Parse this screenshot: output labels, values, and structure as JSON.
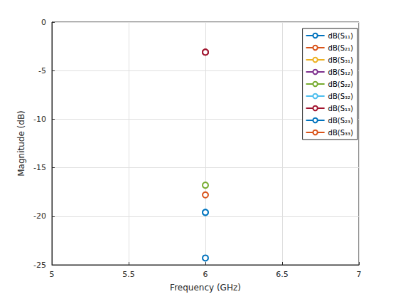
{
  "chart_data": {
    "type": "line",
    "x_label": "Frequency (GHz)",
    "y_label": "Magnitude (dB)",
    "x": [
      6
    ],
    "series": [
      {
        "name": "dB(S₁₁)",
        "color": "#0072BD",
        "values": [
          -24.3
        ]
      },
      {
        "name": "dB(S₂₁)",
        "color": "#D95319",
        "values": [
          -3.1
        ]
      },
      {
        "name": "dB(S₃₁)",
        "color": "#EDB120",
        "values": [
          -3.1
        ]
      },
      {
        "name": "dB(S₁₂)",
        "color": "#7E2F8E",
        "values": [
          -3.1
        ]
      },
      {
        "name": "dB(S₂₂)",
        "color": "#77AC30",
        "values": [
          -16.8
        ]
      },
      {
        "name": "dB(S₃₂)",
        "color": "#4DBEEE",
        "values": [
          -19.6
        ]
      },
      {
        "name": "dB(S₁₃)",
        "color": "#A2142F",
        "values": [
          -3.1
        ]
      },
      {
        "name": "dB(S₂₃)",
        "color": "#0072BD",
        "values": [
          -19.6
        ]
      },
      {
        "name": "dB(S₃₃)",
        "color": "#D95319",
        "values": [
          -17.8
        ]
      }
    ],
    "xlim": [
      5,
      7
    ],
    "xticks": [
      5,
      5.5,
      6,
      6.5,
      7
    ],
    "ylim": [
      -25,
      0
    ],
    "yticks": [
      -25,
      -20,
      -15,
      -10,
      -5,
      0
    ],
    "grid": true,
    "legend": "northeast",
    "marker": "o",
    "line_style": "solid"
  }
}
